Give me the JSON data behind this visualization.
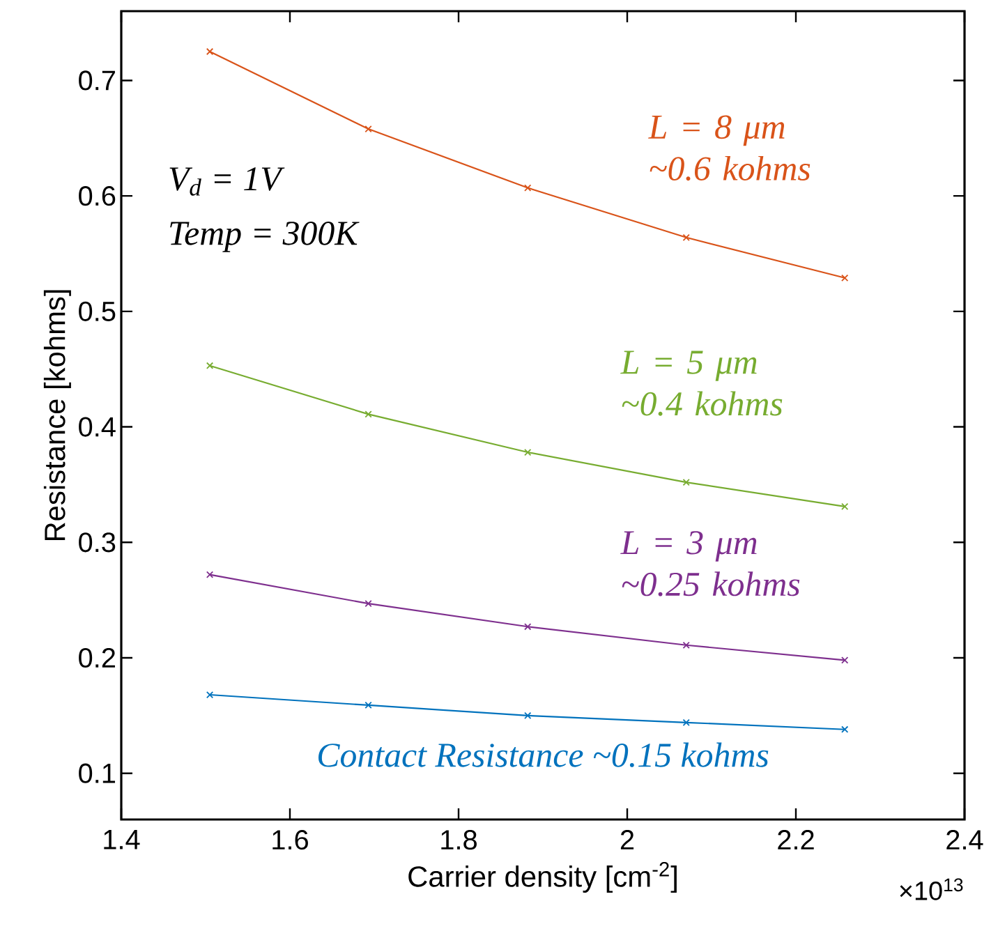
{
  "chart_data": {
    "type": "line",
    "xlabel": "Carrier density [cm$^{-2}$]",
    "ylabel": "Resistance [kohms]",
    "x": [
      1.505,
      1.693,
      1.882,
      2.07,
      2.258
    ],
    "series": [
      {
        "name": "L = 8 μm ~0.6 kohms",
        "color": "#d95319",
        "values": [
          0.725,
          0.658,
          0.607,
          0.564,
          0.529
        ]
      },
      {
        "name": "L = 5 μm ~0.4 kohms",
        "color": "#77ac30",
        "values": [
          0.453,
          0.411,
          0.378,
          0.352,
          0.331
        ]
      },
      {
        "name": "L = 3 μm ~0.25 kohms",
        "color": "#7e2f8e",
        "values": [
          0.272,
          0.247,
          0.227,
          0.211,
          0.198
        ]
      },
      {
        "name": "Contact Resistance ~0.15 kohms",
        "color": "#0072bd",
        "values": [
          0.168,
          0.159,
          0.15,
          0.144,
          0.138
        ]
      }
    ],
    "xlim": [
      1.4,
      2.4
    ],
    "ylim": [
      0.06,
      0.76
    ],
    "xticks": [
      1.4,
      1.6,
      1.8,
      2,
      2.2,
      2.4
    ],
    "yticks": [
      0.1,
      0.2,
      0.3,
      0.4,
      0.5,
      0.6,
      0.7
    ],
    "annotations": [
      "V$_{d}$ = 1V",
      "Temp = 300K",
      "×10$^{13}$"
    ],
    "marker": "cross",
    "line_style": "solid"
  }
}
